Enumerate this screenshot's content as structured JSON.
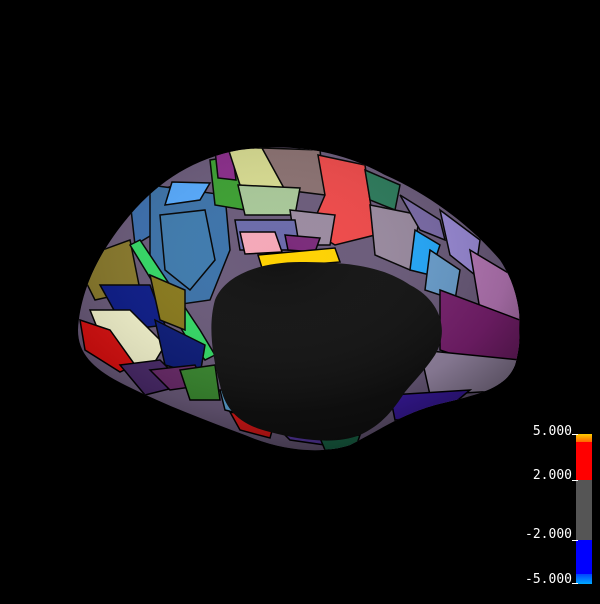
{
  "colorbar": {
    "ticks": [
      "5.000",
      "2.000",
      "-2.000",
      "-5.000"
    ],
    "colors": {
      "top": "#ffcc00",
      "upper": "#ff0000",
      "middle": "#555555",
      "lower": "#0000ff",
      "bottom": "#00aaff"
    }
  },
  "surface": {
    "background": "#000000",
    "medial_wall": "#111111"
  }
}
